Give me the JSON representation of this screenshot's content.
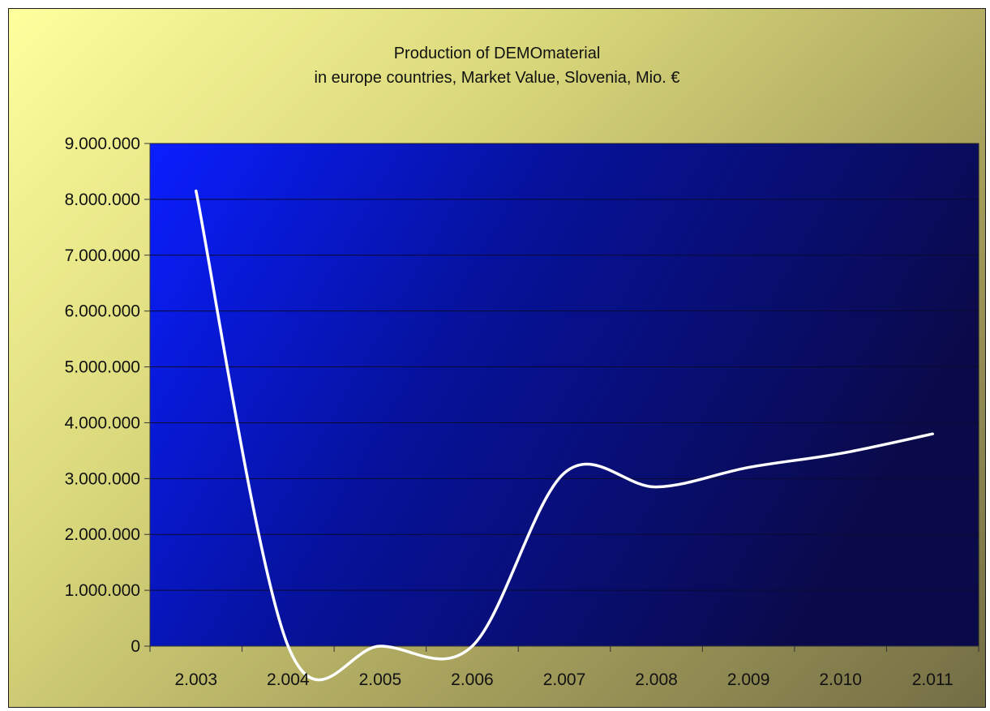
{
  "chart_data": {
    "type": "line",
    "title": "Production of DEMOmaterial",
    "subtitle": "in europe countries, Market Value, Slovenia, Mio. €",
    "xlabel": "",
    "ylabel": "",
    "categories": [
      "2.003",
      "2.004",
      "2.005",
      "2.006",
      "2.007",
      "2.008",
      "2.009",
      "2.010",
      "2.011"
    ],
    "series": [
      {
        "values": [
          8150000,
          0,
          0,
          0,
          3100000,
          2850000,
          3200000,
          3450000,
          3800000
        ]
      }
    ],
    "ylim": [
      0,
      9000000
    ],
    "y_ticks": [
      "0",
      "1.000.000",
      "2.000.000",
      "3.000.000",
      "4.000.000",
      "5.000.000",
      "6.000.000",
      "7.000.000",
      "8.000.000",
      "9.000.000"
    ],
    "grid": true,
    "legend": "none",
    "smooth": true,
    "colors": {
      "plot_background_start": "#0a1eff",
      "plot_background_end": "#0a0a4a",
      "line": "#ffffff",
      "grid": "#0a0a30"
    }
  }
}
